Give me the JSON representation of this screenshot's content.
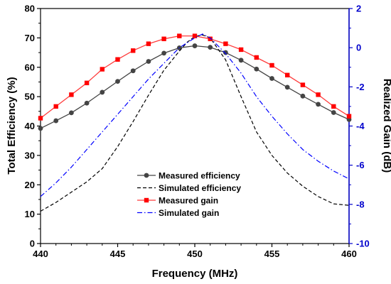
{
  "chart_data": {
    "type": "line",
    "xlabel": "Frequency (MHz)",
    "ylabel_left": "Total Efficiency (%)",
    "ylabel_right": "Realized Gain (dB)",
    "xlim": [
      440,
      460
    ],
    "ylim_left": [
      0,
      80
    ],
    "ylim_right": [
      -10,
      2
    ],
    "xticks": [
      "440",
      "445",
      "450",
      "455",
      "460"
    ],
    "yticks_left": [
      "0",
      "10",
      "20",
      "30",
      "40",
      "50",
      "60",
      "70",
      "80"
    ],
    "yticks_right": [
      "-10",
      "-8",
      "-6",
      "-4",
      "-2",
      "0",
      "2"
    ],
    "legend_position": "center",
    "grid": false,
    "colors": {
      "measured_efficiency": "#444444",
      "simulated_efficiency": "#000000",
      "measured_gain": "#ff0000",
      "measured_gain_line": "#ff3b3b",
      "simulated_gain": "#0000ff",
      "right_axis": "#0000cc"
    },
    "series": [
      {
        "name": "Measured efficiency",
        "axis": "left",
        "style": "solid-circle",
        "x": [
          440,
          441,
          442,
          443,
          444,
          445,
          446,
          447,
          448,
          449,
          450,
          451,
          452,
          453,
          454,
          455,
          456,
          457,
          458,
          459,
          460
        ],
        "values": [
          39.2,
          41.8,
          44.5,
          47.8,
          51.5,
          55.2,
          58.8,
          62.0,
          64.8,
          66.6,
          67.3,
          66.8,
          65.0,
          62.4,
          59.4,
          56.2,
          53.2,
          50.2,
          47.4,
          44.6,
          42.2
        ]
      },
      {
        "name": "Simulated efficiency",
        "axis": "left",
        "style": "dashed",
        "x": [
          440,
          441,
          442,
          443,
          444,
          445,
          446,
          447,
          448,
          449,
          449.5,
          450,
          450.5,
          451,
          452,
          453,
          454,
          455,
          456,
          457,
          458,
          459,
          460
        ],
        "values": [
          11.0,
          14.0,
          17.5,
          21.0,
          25.5,
          33.0,
          41.5,
          50.5,
          59.0,
          65.5,
          68.5,
          70.5,
          71.0,
          70.0,
          62.5,
          50.0,
          38.0,
          30.0,
          24.0,
          19.5,
          16.0,
          13.5,
          13.0
        ]
      },
      {
        "name": "Measured gain",
        "axis": "right",
        "style": "solid-square",
        "x": [
          440,
          441,
          442,
          443,
          444,
          445,
          446,
          447,
          448,
          449,
          450,
          451,
          452,
          453,
          454,
          455,
          456,
          457,
          458,
          459,
          460
        ],
        "values": [
          -3.6,
          -3.0,
          -2.4,
          -1.8,
          -1.1,
          -0.6,
          -0.15,
          0.2,
          0.45,
          0.6,
          0.6,
          0.45,
          0.2,
          -0.1,
          -0.5,
          -0.9,
          -1.4,
          -1.9,
          -2.4,
          -3.0,
          -3.5
        ]
      },
      {
        "name": "Simulated gain",
        "axis": "right",
        "style": "dash-dot",
        "x": [
          440,
          441,
          442,
          443,
          444,
          445,
          446,
          447,
          448,
          449,
          450,
          450.5,
          451,
          452,
          453,
          454,
          455,
          456,
          457,
          458,
          459,
          460
        ],
        "values": [
          -7.6,
          -6.9,
          -6.1,
          -5.2,
          -4.3,
          -3.4,
          -2.5,
          -1.6,
          -0.8,
          0.0,
          0.5,
          0.7,
          0.5,
          -0.3,
          -1.3,
          -2.5,
          -3.5,
          -4.4,
          -5.2,
          -5.8,
          -6.3,
          -6.7
        ]
      }
    ]
  }
}
